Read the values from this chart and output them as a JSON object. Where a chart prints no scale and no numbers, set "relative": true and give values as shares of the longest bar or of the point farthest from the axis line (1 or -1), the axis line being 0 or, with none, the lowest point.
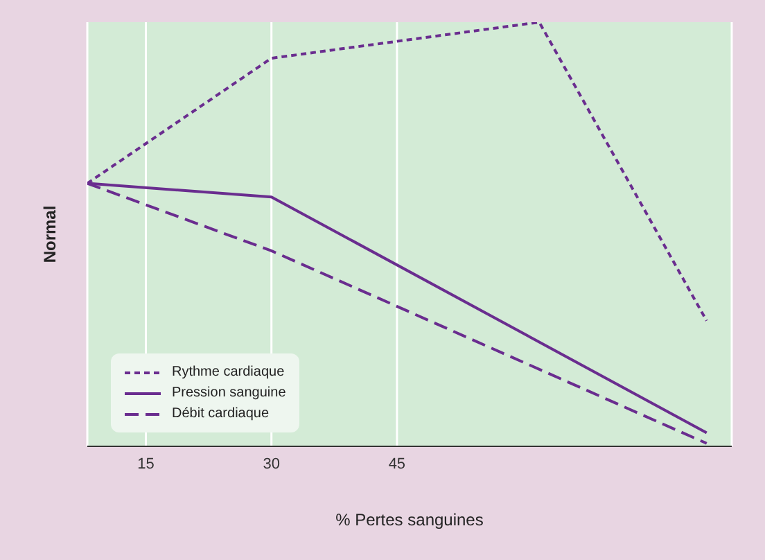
{
  "chart_data": {
    "type": "line",
    "relative": true,
    "xlabel": "% Pertes sanguines",
    "ylabel": "Normal",
    "xlim": [
      8,
      85
    ],
    "xticks": [
      15,
      30,
      45
    ],
    "grid": "x",
    "legend": "bottom left",
    "series": [
      {
        "name": "Rythme cardiaque",
        "color": "#6a2d8f",
        "line_style": "dotted",
        "x": [
          8,
          30,
          62,
          82
        ],
        "values": [
          0.62,
          0.915,
          1,
          0.296
        ]
      },
      {
        "name": "Pression sanguine",
        "color": "#6a2d8f",
        "line_style": "solid",
        "x": [
          8,
          30,
          82
        ],
        "values": [
          0.62,
          0.588,
          0.032
        ]
      },
      {
        "name": "Débit cardiaque",
        "color": "#6a2d8f",
        "line_style": "dashed",
        "x": [
          8,
          30,
          82
        ],
        "values": [
          0.62,
          0.461,
          0.007
        ]
      }
    ]
  }
}
